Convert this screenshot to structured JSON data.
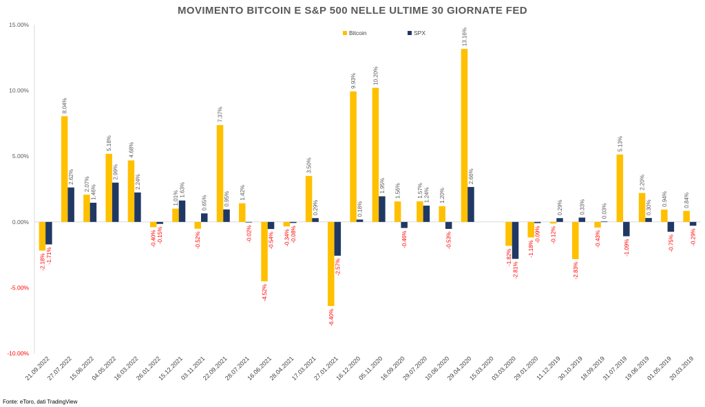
{
  "chart_data": {
    "type": "bar",
    "title": "MOVIMENTO BITCOIN E S&P 500 NELLE ULTIME 30 GIORNATE FED",
    "categories": [
      "21.09.2022",
      "27.07.2022",
      "15.06.2022",
      "04.05.2022",
      "16.03.2022",
      "26.01.2022",
      "15.12.2021",
      "03.11.2021",
      "22.09.2021",
      "28.07.2021",
      "16.06.2021",
      "28.04.2021",
      "17.03.2021",
      "27.01.2021",
      "16.12.2020",
      "05.11.2020",
      "16.09.2020",
      "29.07.2020",
      "10.06.2020",
      "29.04.2020",
      "15.03.2020",
      "03.03.2020",
      "29.01.2020",
      "11.12.2019",
      "30.10.2019",
      "18.09.2019",
      "31.07.2019",
      "19.06.2019",
      "01.05.2019",
      "20.03.2019"
    ],
    "series": [
      {
        "name": "Bitcoin",
        "color": "#FFC000",
        "values": [
          -2.18,
          8.04,
          2.07,
          5.18,
          4.68,
          -0.4,
          1.01,
          -0.52,
          7.37,
          1.42,
          -4.52,
          -0.34,
          3.5,
          -6.4,
          9.93,
          10.2,
          1.56,
          1.57,
          1.2,
          13.16,
          null,
          -1.82,
          -1.18,
          -0.12,
          -2.83,
          -0.43,
          5.13,
          2.2,
          0.94,
          0.84
        ],
        "labels": [
          "-2.18%",
          "8.04%",
          "2.07%",
          "5.18%",
          "4.68%",
          "-0.40%",
          "1.01%",
          "-0.52%",
          "7.37%",
          "1.42%",
          "-4.52%",
          "-0.34%",
          "3.50%",
          "-6.40%",
          "9.93%",
          "10.20%",
          "1.56%",
          "1.57%",
          "1.20%",
          "13.16%",
          "",
          "-1.82%",
          "-1.18%",
          "-0.12%",
          "-2.83%",
          "-0.43%",
          "5.13%",
          "2.20%",
          "0.94%",
          "0.84%"
        ]
      },
      {
        "name": "SPX",
        "color": "#203864",
        "values": [
          -1.71,
          2.62,
          1.46,
          2.99,
          2.24,
          -0.15,
          1.63,
          0.65,
          0.95,
          -0.02,
          -0.54,
          -0.08,
          0.29,
          -2.57,
          0.18,
          1.95,
          -0.46,
          1.24,
          -0.53,
          2.66,
          null,
          -2.81,
          -0.09,
          0.29,
          0.33,
          0.03,
          -1.09,
          0.3,
          -0.75,
          -0.29
        ],
        "labels": [
          "-1.71%",
          "2.62%",
          "1.46%",
          "2.99%",
          "2.24%",
          "-0.15%",
          "1.63%",
          "0.65%",
          "0.95%",
          "-0.02%",
          "-0.54%",
          "-0.08%",
          "0.29%",
          "-2.57%",
          "0.18%",
          "1.95%",
          "-0.46%",
          "1.24%",
          "-0.53%",
          "2.66%",
          "",
          "-2.81%",
          "-0.09%",
          "0.29%",
          "0.33%",
          "0.03%",
          "-1.09%",
          "0.30%",
          "-0.75%",
          "-0.29%"
        ]
      }
    ],
    "ylim": [
      -10,
      15
    ],
    "yticks": [
      "-10.00%",
      "-5.00%",
      "0.00%",
      "5.00%",
      "10.00%",
      "15.00%"
    ],
    "ytick_values": [
      -10,
      -5,
      0,
      5,
      10,
      15
    ],
    "grid": false,
    "legend": "top-center",
    "negative_label_color": "#FF0000",
    "positive_label_color": "#595959"
  },
  "source_note": "Fonte: eToro, dati TradingView"
}
